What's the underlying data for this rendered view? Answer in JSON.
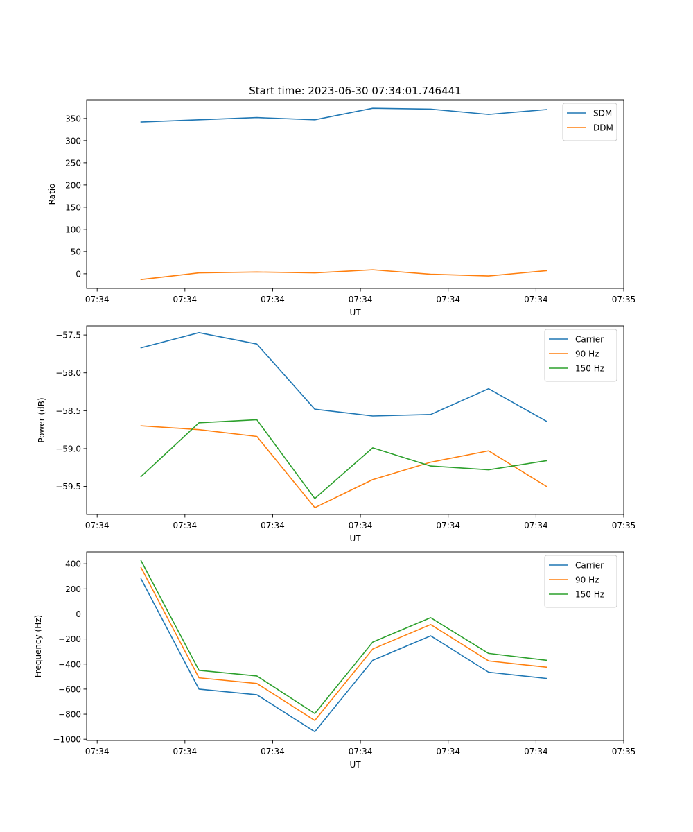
{
  "figure_title": "Start time: 2023-06-30 07:34:01.746441",
  "chart_data": [
    {
      "type": "line",
      "title": "Start time: 2023-06-30 07:34:01.746441",
      "xlabel": "UT",
      "ylabel": "Ratio",
      "x_tick_labels": [
        "07:34",
        "07:34",
        "07:34",
        "07:34",
        "07:34",
        "07:34",
        "07:35"
      ],
      "x_tick_positions": [
        0,
        1,
        2,
        3,
        4,
        5,
        6
      ],
      "x": [
        0.5,
        1.16,
        1.82,
        2.48,
        3.14,
        3.8,
        4.46,
        5.12
      ],
      "xlim": [
        -0.12,
        6.0
      ],
      "ylim": [
        -33,
        392
      ],
      "y_ticks": [
        0,
        50,
        100,
        150,
        200,
        250,
        300,
        350
      ],
      "legend_position": "top-right",
      "series": [
        {
          "name": "SDM",
          "color": "#1f77b4",
          "values": [
            342,
            347,
            352,
            347,
            373,
            371,
            359,
            370
          ]
        },
        {
          "name": "DDM",
          "color": "#ff7f0e",
          "values": [
            -13,
            2,
            4,
            2,
            9,
            -1,
            -5,
            7
          ]
        }
      ]
    },
    {
      "type": "line",
      "title": "",
      "xlabel": "UT",
      "ylabel": "Power (dB)",
      "x_tick_labels": [
        "07:34",
        "07:34",
        "07:34",
        "07:34",
        "07:34",
        "07:34",
        "07:35"
      ],
      "x_tick_positions": [
        0,
        1,
        2,
        3,
        4,
        5,
        6
      ],
      "x": [
        0.5,
        1.16,
        1.82,
        2.48,
        3.14,
        3.8,
        4.46,
        5.12
      ],
      "xlim": [
        -0.12,
        6.0
      ],
      "ylim": [
        -59.87,
        -57.38
      ],
      "y_ticks": [
        -59.5,
        -59.0,
        -58.5,
        -58.0,
        -57.5
      ],
      "y_tick_labels": [
        "−59.5",
        "−59.0",
        "−58.5",
        "−58.0",
        "−57.5"
      ],
      "legend_position": "top-right",
      "series": [
        {
          "name": "Carrier",
          "color": "#1f77b4",
          "values": [
            -57.67,
            -57.47,
            -57.62,
            -58.48,
            -58.57,
            -58.55,
            -58.21,
            -58.64
          ]
        },
        {
          "name": "90 Hz",
          "color": "#ff7f0e",
          "values": [
            -58.7,
            -58.75,
            -58.84,
            -59.78,
            -59.41,
            -59.18,
            -59.03,
            -59.5
          ]
        },
        {
          "name": "150 Hz",
          "color": "#2ca02c",
          "values": [
            -59.37,
            -58.66,
            -58.62,
            -59.66,
            -58.99,
            -59.23,
            -59.28,
            -59.16
          ]
        }
      ]
    },
    {
      "type": "line",
      "title": "",
      "xlabel": "UT",
      "ylabel": "Frequency (Hz)",
      "x_tick_labels": [
        "07:34",
        "07:34",
        "07:34",
        "07:34",
        "07:34",
        "07:34",
        "07:35"
      ],
      "x_tick_positions": [
        0,
        1,
        2,
        3,
        4,
        5,
        6
      ],
      "x": [
        0.5,
        1.16,
        1.82,
        2.48,
        3.14,
        3.8,
        4.46,
        5.12
      ],
      "xlim": [
        -0.12,
        6.0
      ],
      "ylim": [
        -1010,
        495
      ],
      "y_ticks": [
        -1000,
        -800,
        -600,
        -400,
        -200,
        0,
        200,
        400
      ],
      "y_tick_labels": [
        "−1000",
        "−800",
        "−600",
        "−400",
        "−200",
        "0",
        "200",
        "400"
      ],
      "legend_position": "top-right",
      "series": [
        {
          "name": "Carrier",
          "color": "#1f77b4",
          "values": [
            280,
            -600,
            -645,
            -940,
            -370,
            -175,
            -465,
            -515
          ]
        },
        {
          "name": "90 Hz",
          "color": "#ff7f0e",
          "values": [
            370,
            -510,
            -555,
            -850,
            -280,
            -85,
            -375,
            -425
          ]
        },
        {
          "name": "150 Hz",
          "color": "#2ca02c",
          "values": [
            425,
            -450,
            -495,
            -795,
            -225,
            -30,
            -315,
            -370
          ]
        }
      ]
    }
  ]
}
